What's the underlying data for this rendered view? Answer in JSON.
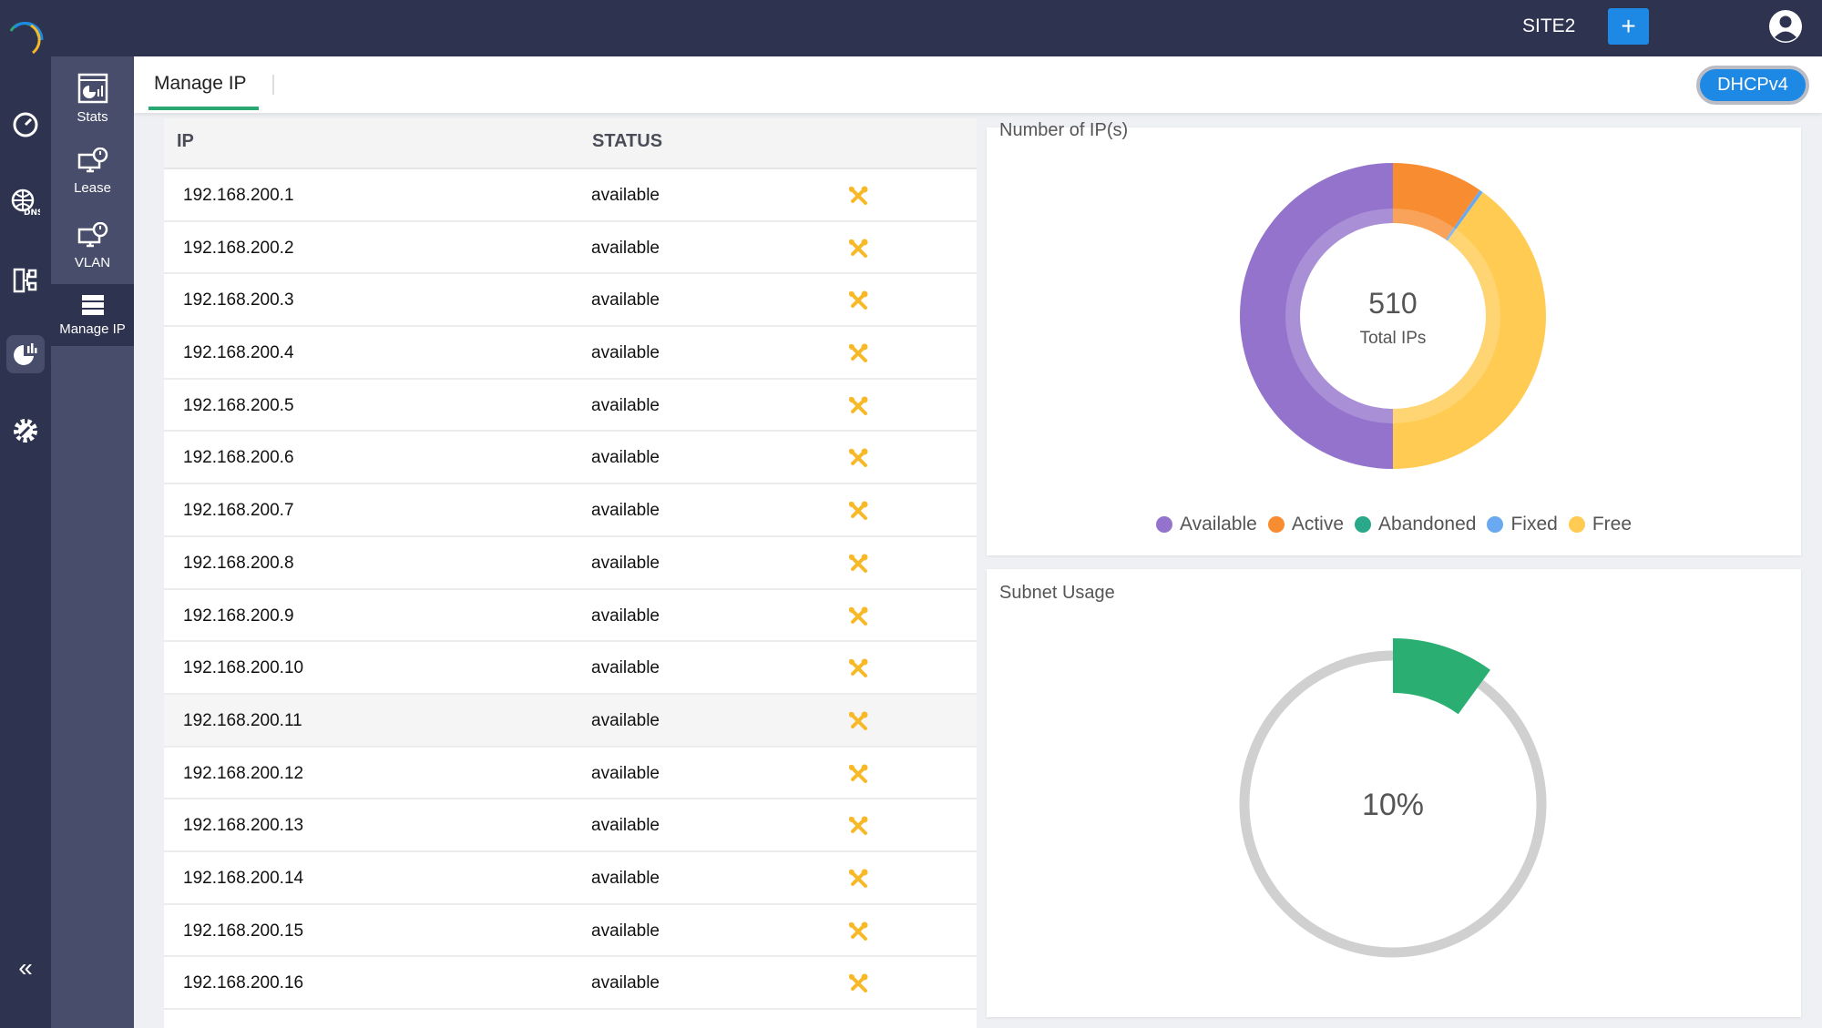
{
  "header": {
    "site": "SITE2",
    "add_label": "+",
    "protocol_toggle": "DHCPv4"
  },
  "rail": {
    "items": [
      "dashboard-icon",
      "dns-icon",
      "network-tree-icon",
      "analytics-icon",
      "settings-icon"
    ],
    "collapse_label": "«"
  },
  "subnav": {
    "items": [
      {
        "label": "Stats"
      },
      {
        "label": "Lease"
      },
      {
        "label": "VLAN"
      },
      {
        "label": "Manage IP"
      }
    ]
  },
  "tabs": [
    {
      "label": "Manage IP"
    }
  ],
  "table": {
    "columns": [
      "IP",
      "STATUS"
    ],
    "rows": [
      {
        "ip": "192.168.200.1",
        "status": "available"
      },
      {
        "ip": "192.168.200.2",
        "status": "available"
      },
      {
        "ip": "192.168.200.3",
        "status": "available"
      },
      {
        "ip": "192.168.200.4",
        "status": "available"
      },
      {
        "ip": "192.168.200.5",
        "status": "available"
      },
      {
        "ip": "192.168.200.6",
        "status": "available"
      },
      {
        "ip": "192.168.200.7",
        "status": "available"
      },
      {
        "ip": "192.168.200.8",
        "status": "available"
      },
      {
        "ip": "192.168.200.9",
        "status": "available"
      },
      {
        "ip": "192.168.200.10",
        "status": "available"
      },
      {
        "ip": "192.168.200.11",
        "status": "available"
      },
      {
        "ip": "192.168.200.12",
        "status": "available"
      },
      {
        "ip": "192.168.200.13",
        "status": "available"
      },
      {
        "ip": "192.168.200.14",
        "status": "available"
      },
      {
        "ip": "192.168.200.15",
        "status": "available"
      },
      {
        "ip": "192.168.200.16",
        "status": "available"
      }
    ],
    "tool_color": "#f7b928"
  },
  "chart_data": [
    {
      "type": "pie",
      "title": "Number of IP(s)",
      "center_value": "510",
      "center_label": "Total IPs",
      "legend_position": "bottom",
      "series": [
        {
          "name": "Available",
          "value": 255,
          "color": "#9373cc"
        },
        {
          "name": "Active",
          "value": 49,
          "color": "#f78c30"
        },
        {
          "name": "Abandoned",
          "value": 0,
          "color": "#2aa88a"
        },
        {
          "name": "Fixed",
          "value": 2,
          "color": "#6aa9ef"
        },
        {
          "name": "Free",
          "value": 204,
          "color": "#ffcb52"
        }
      ]
    },
    {
      "type": "gauge",
      "title": "Subnet Usage",
      "value": 10,
      "label": "10%",
      "color": "#2aae72",
      "track_color": "#d0d0d0"
    }
  ]
}
